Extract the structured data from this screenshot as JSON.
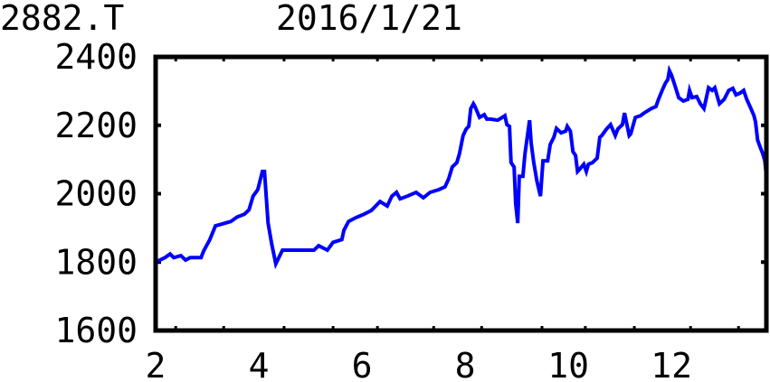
{
  "header": {
    "ticker": "2882.T",
    "date": "2016/1/21"
  },
  "chart_data": {
    "type": "line",
    "title": "",
    "xlabel": "",
    "ylabel": "",
    "xlim": [
      2,
      13.84
    ],
    "ylim": [
      1600,
      2400
    ],
    "grid": false,
    "x_tick_labels": [
      "2",
      "4",
      "6",
      "8",
      "10",
      "12"
    ],
    "x_tick_values": [
      2,
      4,
      6,
      8,
      10,
      12
    ],
    "x_minor_ticks": [
      2.39,
      3.32,
      4.49,
      5.44,
      6.3,
      7.39,
      8.32,
      9.49,
      10.33,
      11.28,
      12.37,
      13.3
    ],
    "y_tick_labels": [
      "1600",
      "1800",
      "2000",
      "2200",
      "2400"
    ],
    "y_tick_values": [
      1600,
      1800,
      2000,
      2200,
      2400
    ],
    "line_color": "#0000ff",
    "series": [
      {
        "x": [
          2.0,
          2.11,
          2.18,
          2.28,
          2.35,
          2.49,
          2.58,
          2.67,
          2.88,
          2.93,
          3.05,
          3.16,
          3.28,
          3.46,
          3.58,
          3.72,
          3.81,
          3.89,
          3.98,
          4.07,
          4.11,
          4.18,
          4.25,
          4.33,
          4.46,
          5.07,
          5.16,
          5.33,
          5.44,
          5.61,
          5.65,
          5.74,
          5.88,
          6.04,
          6.18,
          6.35,
          6.49,
          6.58,
          6.67,
          6.74,
          6.88,
          7.05,
          7.19,
          7.32,
          7.49,
          7.61,
          7.68,
          7.75,
          7.84,
          7.89,
          7.96,
          8.02,
          8.07,
          8.11,
          8.16,
          8.19,
          8.28,
          8.37,
          8.42,
          8.49,
          8.63,
          8.72,
          8.77,
          8.81,
          8.86,
          8.89,
          8.95,
          8.98,
          9.02,
          9.05,
          9.12,
          9.16,
          9.25,
          9.28,
          9.33,
          9.39,
          9.46,
          9.51,
          9.6,
          9.65,
          9.72,
          9.77,
          9.86,
          9.95,
          9.98,
          10.04,
          10.09,
          10.14,
          10.18,
          10.21,
          10.3,
          10.35,
          10.39,
          10.47,
          10.56,
          10.61,
          10.65,
          10.74,
          10.82,
          10.91,
          10.96,
          11.05,
          11.09,
          11.18,
          11.21,
          11.3,
          11.4,
          11.47,
          11.61,
          11.7,
          11.75,
          11.82,
          11.88,
          11.93,
          11.96,
          12.0,
          12.07,
          12.14,
          12.23,
          12.32,
          12.35,
          12.4,
          12.49,
          12.56,
          12.63,
          12.67,
          12.72,
          12.79,
          12.84,
          12.93,
          13.02,
          13.11,
          13.19,
          13.25,
          13.33,
          13.4,
          13.46,
          13.54,
          13.6,
          13.63,
          13.67,
          13.72,
          13.77,
          13.81,
          13.84
        ],
        "y": [
          1800,
          1808,
          1813,
          1824,
          1813,
          1819,
          1806,
          1813,
          1813,
          1832,
          1866,
          1906,
          1911,
          1919,
          1932,
          1940,
          1953,
          1993,
          2012,
          2065,
          2065,
          1914,
          1853,
          1795,
          1835,
          1835,
          1848,
          1835,
          1858,
          1866,
          1893,
          1919,
          1930,
          1940,
          1951,
          1977,
          1964,
          1993,
          2004,
          1985,
          1993,
          2004,
          1988,
          2004,
          2012,
          2020,
          2043,
          2078,
          2091,
          2117,
          2170,
          2189,
          2197,
          2249,
          2263,
          2255,
          2223,
          2231,
          2218,
          2218,
          2215,
          2223,
          2228,
          2202,
          2197,
          2091,
          2078,
          1972,
          1914,
          2051,
          2051,
          2117,
          2215,
          2149,
          2091,
          2038,
          1993,
          2096,
          2096,
          2144,
          2165,
          2191,
          2178,
          2183,
          2197,
          2183,
          2123,
          2112,
          2065,
          2070,
          2086,
          2065,
          2086,
          2091,
          2104,
          2165,
          2170,
          2189,
          2202,
          2170,
          2189,
          2202,
          2236,
          2170,
          2175,
          2223,
          2228,
          2236,
          2249,
          2255,
          2276,
          2302,
          2323,
          2334,
          2360,
          2347,
          2315,
          2281,
          2271,
          2276,
          2302,
          2281,
          2284,
          2263,
          2249,
          2276,
          2310,
          2302,
          2310,
          2263,
          2276,
          2302,
          2308,
          2289,
          2294,
          2302,
          2276,
          2249,
          2228,
          2210,
          2157,
          2136,
          2117,
          2096,
          2051
        ]
      }
    ]
  }
}
